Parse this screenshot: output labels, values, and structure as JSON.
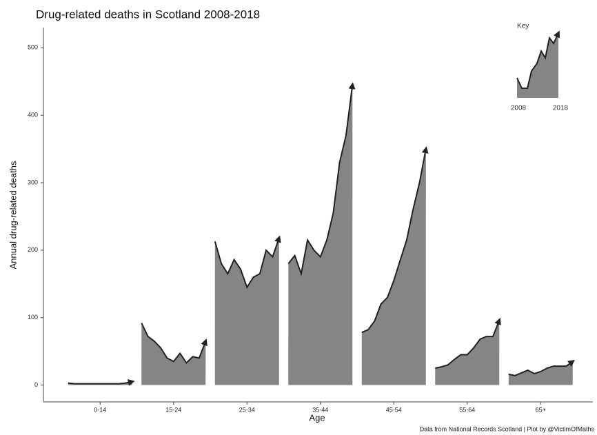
{
  "chart_data": {
    "type": "area",
    "title": "Drug-related deaths in Scotland 2008-2018",
    "x_label": "Age",
    "y_label": "Annual drug-related deaths",
    "source": "Data from National Records Scotland | Plot by @VictimOfMaths",
    "categories": [
      "0-14",
      "15-24",
      "25-34",
      "35-44",
      "45-54",
      "55-64",
      "65+"
    ],
    "values": [
      [
        3,
        2,
        2,
        2,
        2,
        2,
        2,
        2,
        2,
        3,
        5
      ],
      [
        92,
        72,
        65,
        55,
        40,
        35,
        47,
        33,
        42,
        40,
        65
      ],
      [
        213,
        180,
        165,
        186,
        172,
        145,
        160,
        165,
        200,
        190,
        218
      ],
      [
        180,
        192,
        165,
        215,
        200,
        190,
        215,
        255,
        330,
        370,
        445
      ],
      [
        78,
        82,
        95,
        120,
        130,
        155,
        185,
        215,
        260,
        300,
        350
      ],
      [
        25,
        27,
        30,
        38,
        45,
        45,
        55,
        68,
        72,
        72,
        96
      ],
      [
        16,
        14,
        18,
        22,
        17,
        20,
        25,
        28,
        28,
        28,
        35
      ]
    ],
    "color": "#858585",
    "line_color": "#222222",
    "ylim": [
      -25,
      530
    ],
    "yticks": [
      0,
      100,
      200,
      300,
      400,
      500
    ],
    "key": {
      "title": "Key",
      "start": "2008",
      "end": "2018"
    }
  }
}
